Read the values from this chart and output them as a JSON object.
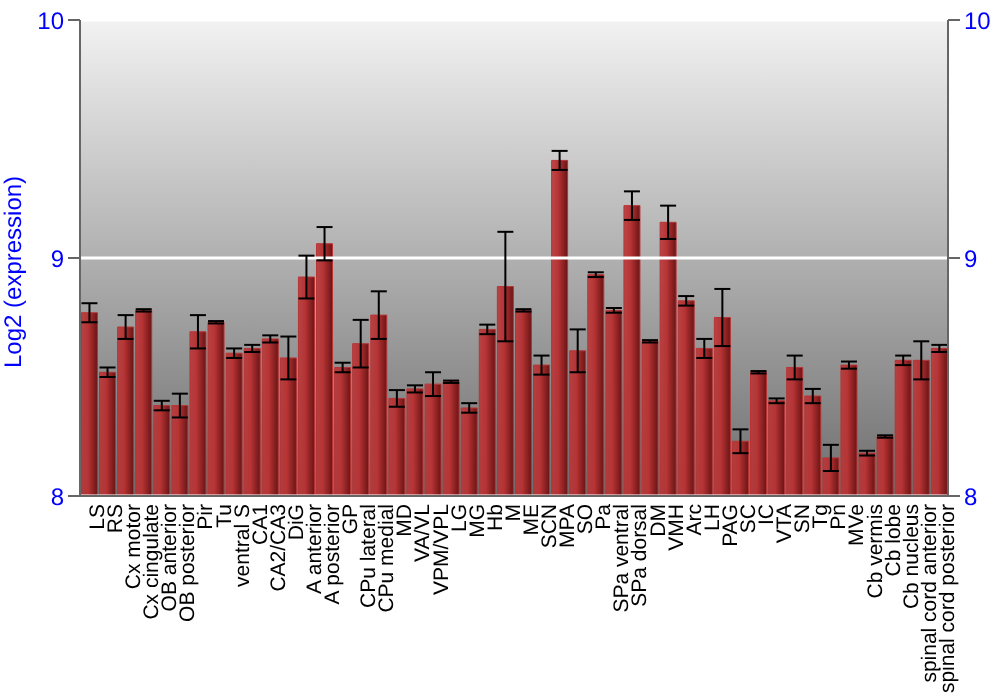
{
  "chart_data": {
    "type": "bar",
    "ylabel": "Log2 (expression)",
    "categories": [
      "LS",
      "RS",
      "Cx motor",
      "Cx cingulate",
      "OB anterior",
      "OB posterior",
      "Pir",
      "Tu",
      "ventral S",
      "CA1",
      "CA2/CA3",
      "DiG",
      "A anterior",
      "A posterior",
      "GP",
      "CPu lateral",
      "CPu medial",
      "MD",
      "VA/VL",
      "VPM/VPL",
      "LG",
      "MG",
      "Hb",
      "M",
      "ME",
      "SCN",
      "MPA",
      "SO",
      "Pa",
      "SPa ventral",
      "SPa dorsal",
      "DM",
      "VMH",
      "Arc",
      "LH",
      "PAG",
      "SC",
      "IC",
      "VTA",
      "SN",
      "Tg",
      "Pn",
      "MVe",
      "Cb vermis",
      "Cb lobe",
      "Cb nucleus",
      "spinal cord anterior",
      "spinal cord posterior"
    ],
    "values": [
      8.77,
      8.52,
      8.71,
      8.78,
      8.38,
      8.38,
      8.69,
      8.73,
      8.6,
      8.62,
      8.66,
      8.58,
      8.92,
      9.06,
      8.54,
      8.64,
      8.76,
      8.41,
      8.45,
      8.47,
      8.48,
      8.37,
      8.7,
      8.88,
      8.78,
      8.55,
      9.41,
      8.61,
      8.93,
      8.78,
      9.22,
      8.65,
      9.15,
      8.82,
      8.62,
      8.75,
      8.23,
      8.52,
      8.4,
      8.54,
      8.42,
      8.16,
      8.55,
      8.18,
      8.25,
      8.57,
      8.57,
      8.62
    ],
    "errors": [
      0.04,
      0.02,
      0.05,
      0.005,
      0.02,
      0.05,
      0.07,
      0.005,
      0.02,
      0.015,
      0.015,
      0.09,
      0.09,
      0.07,
      0.02,
      0.1,
      0.1,
      0.035,
      0.015,
      0.05,
      0.005,
      0.02,
      0.02,
      0.23,
      0.005,
      0.04,
      0.04,
      0.09,
      0.01,
      0.01,
      0.06,
      0.005,
      0.07,
      0.02,
      0.04,
      0.12,
      0.05,
      0.005,
      0.01,
      0.05,
      0.03,
      0.055,
      0.015,
      0.01,
      0.005,
      0.02,
      0.08,
      0.015
    ],
    "color": "#b83435",
    "ylim": [
      8,
      10
    ],
    "yticks": [
      8,
      9,
      10
    ],
    "y2lim": [
      8,
      10
    ],
    "y2ticks": [
      8,
      9,
      10
    ],
    "grid": "y"
  }
}
